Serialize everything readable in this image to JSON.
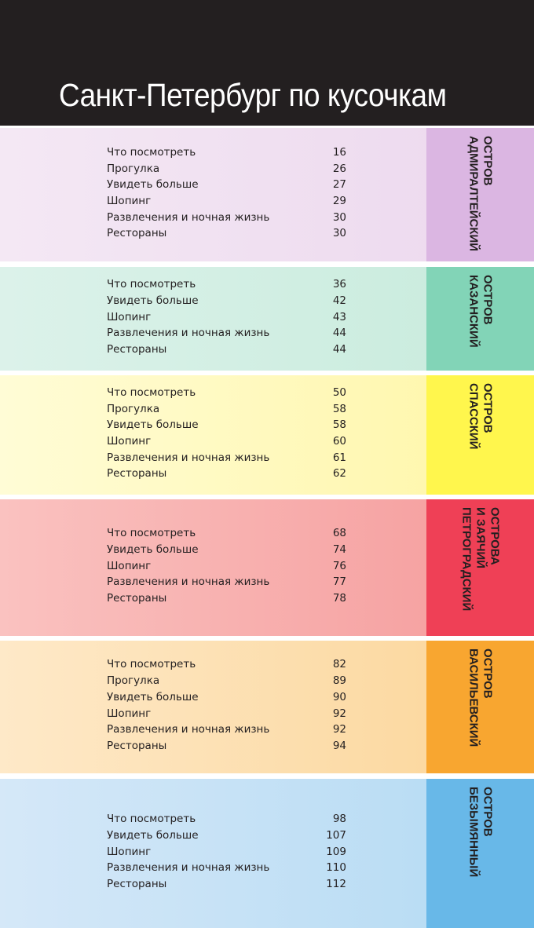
{
  "header": {
    "title": "Санкт-Петербург по кусочкам"
  },
  "sections": [
    {
      "tab": [
        "АДМИРАЛТЕЙСКИЙ",
        "ОСТРОВ"
      ],
      "items": [
        {
          "label": "Что посмотреть",
          "page": 16
        },
        {
          "label": "Прогулка",
          "page": 26
        },
        {
          "label": "Увидеть больше",
          "page": 27
        },
        {
          "label": "Шопинг",
          "page": 29
        },
        {
          "label": "Развлечения и ночная жизнь",
          "page": 30
        },
        {
          "label": "Рестораны",
          "page": 30
        }
      ]
    },
    {
      "tab": [
        "КАЗАНСКИЙ",
        "ОСТРОВ"
      ],
      "items": [
        {
          "label": "Что посмотреть",
          "page": 36
        },
        {
          "label": "Увидеть больше",
          "page": 42
        },
        {
          "label": "Шопинг",
          "page": 43
        },
        {
          "label": "Развлечения и ночная жизнь",
          "page": 44
        },
        {
          "label": "Рестораны",
          "page": 44
        }
      ]
    },
    {
      "tab": [
        "СПАССКИЙ",
        "ОСТРОВ"
      ],
      "items": [
        {
          "label": "Что посмотреть",
          "page": 50
        },
        {
          "label": "Прогулка",
          "page": 58
        },
        {
          "label": "Увидеть больше",
          "page": 58
        },
        {
          "label": "Шопинг",
          "page": 60
        },
        {
          "label": "Развлечения и ночная жизнь",
          "page": 61
        },
        {
          "label": "Рестораны",
          "page": 62
        }
      ]
    },
    {
      "tab": [
        "ПЕТРОГРАДСКИЙ",
        "И ЗАЯЧИЙ",
        "ОСТРОВА"
      ],
      "items": [
        {
          "label": "Что посмотреть",
          "page": 68
        },
        {
          "label": "Увидеть больше",
          "page": 74
        },
        {
          "label": "Шопинг",
          "page": 76
        },
        {
          "label": "Развлечения и ночная жизнь",
          "page": 77
        },
        {
          "label": "Рестораны",
          "page": 78
        }
      ]
    },
    {
      "tab": [
        "ВАСИЛЬЕВСКИЙ",
        "ОСТРОВ"
      ],
      "items": [
        {
          "label": "Что посмотреть",
          "page": 82
        },
        {
          "label": "Прогулка",
          "page": 89
        },
        {
          "label": "Увидеть больше",
          "page": 90
        },
        {
          "label": "Шопинг",
          "page": 92
        },
        {
          "label": "Развлечения и ночная жизнь",
          "page": 92
        },
        {
          "label": "Рестораны",
          "page": 94
        }
      ]
    },
    {
      "tab": [
        "БЕЗЫМЯННЫЙ",
        "ОСТРОВ"
      ],
      "items": [
        {
          "label": "Что посмотреть",
          "page": 98
        },
        {
          "label": "Увидеть больше",
          "page": 107
        },
        {
          "label": "Шопинг",
          "page": 109
        },
        {
          "label": "Развлечения и ночная жизнь",
          "page": 110
        },
        {
          "label": "Рестораны",
          "page": 112
        }
      ]
    }
  ]
}
